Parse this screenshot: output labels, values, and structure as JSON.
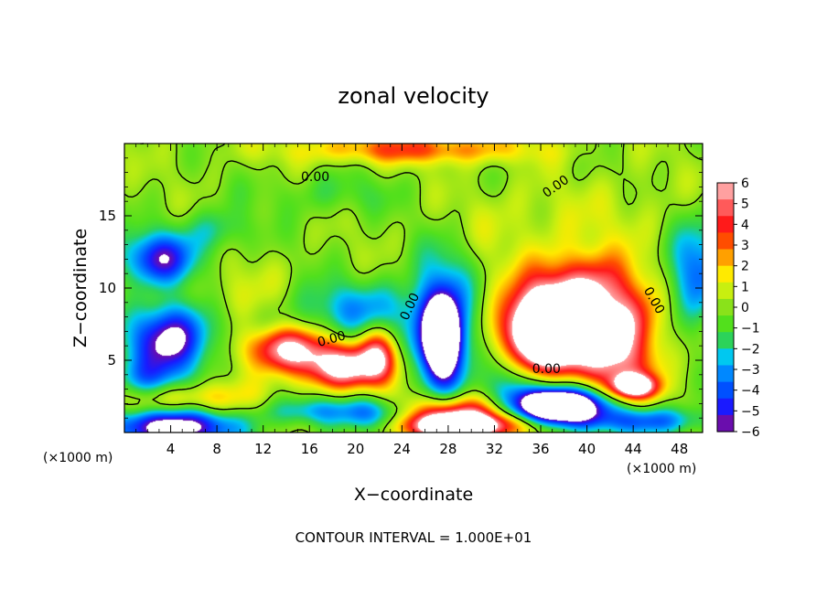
{
  "chart_data": {
    "type": "heatmap",
    "title": "zonal velocity",
    "xlabel": "X−coordinate",
    "ylabel": "Z−coordinate",
    "x_unit": "(×1000 m)",
    "y_unit": "(×1000 m)",
    "xlim": [
      0,
      50
    ],
    "ylim": [
      0,
      20
    ],
    "x_ticks": [
      "4",
      "8",
      "12",
      "16",
      "20",
      "24",
      "28",
      "32",
      "36",
      "40",
      "44",
      "48"
    ],
    "y_ticks": [
      "5",
      "10",
      "15"
    ],
    "colorbar": {
      "ticks": [
        "6",
        "5",
        "4",
        "3",
        "2",
        "1",
        "0",
        "−1",
        "−2",
        "−3",
        "−4",
        "−5",
        "−6"
      ],
      "range": [
        -6,
        6
      ],
      "colors": [
        "#6a0dad",
        "#1a1aff",
        "#0050ff",
        "#0088ff",
        "#00c8f0",
        "#2cd35a",
        "#52e01c",
        "#8ae21a",
        "#c8ef10",
        "#ffea00",
        "#ffa000",
        "#ff4d00",
        "#ff1a1a",
        "#ff5a5a",
        "#ffa0a0"
      ],
      "saturation": "#ffffff"
    },
    "contour_interval_text": "CONTOUR INTERVAL = 1.000E+01",
    "contour_labels": [
      "0.00",
      "0.00",
      "0.00",
      "0.00",
      "0.00",
      "0.00"
    ],
    "blobs": [
      {
        "x": 4,
        "z": 6.5,
        "rx": 3.5,
        "rz": 2.4,
        "v": -6.8
      },
      {
        "x": 4,
        "z": 0.4,
        "rx": 5.5,
        "rz": 1.3,
        "v": -7.5
      },
      {
        "x": 3,
        "z": 12,
        "rx": 3.2,
        "rz": 1.8,
        "v": -5.5
      },
      {
        "x": 8,
        "z": 14,
        "rx": 3.0,
        "rz": 1.5,
        "v": -2
      },
      {
        "x": 14,
        "z": 5.8,
        "rx": 3.5,
        "rz": 1.5,
        "v": 6.2
      },
      {
        "x": 19,
        "z": 4.5,
        "rx": 4,
        "rz": 1.5,
        "v": 6.5
      },
      {
        "x": 22,
        "z": 5.5,
        "rx": 1.6,
        "rz": 1.8,
        "v": 4.5
      },
      {
        "x": 20,
        "z": 8.5,
        "rx": 6,
        "rz": 2.0,
        "v": -3
      },
      {
        "x": 27.5,
        "z": 7,
        "rx": 2.6,
        "rz": 4.8,
        "v": -6
      },
      {
        "x": 27.5,
        "z": 6.5,
        "rx": 1.4,
        "rz": 2.2,
        "v": -9
      },
      {
        "x": 29,
        "z": 1.2,
        "rx": 6,
        "rz": 1.4,
        "v": 6.5
      },
      {
        "x": 29,
        "z": 0.4,
        "rx": 4,
        "rz": 0.8,
        "v": 9
      },
      {
        "x": 37.5,
        "z": 7.5,
        "rx": 4.8,
        "rz": 3.8,
        "v": 7
      },
      {
        "x": 36.5,
        "z": 7,
        "rx": 3.0,
        "rz": 2.3,
        "v": 9.5
      },
      {
        "x": 43,
        "z": 5,
        "rx": 3.5,
        "rz": 3.5,
        "v": 4.5
      },
      {
        "x": 44,
        "z": 3.2,
        "rx": 2.0,
        "rz": 0.8,
        "v": 7
      },
      {
        "x": 41,
        "z": 10,
        "rx": 3.5,
        "rz": 2.5,
        "v": 3.5
      },
      {
        "x": 38,
        "z": 2,
        "rx": 5,
        "rz": 1.6,
        "v": -6.5
      },
      {
        "x": 37,
        "z": 1.8,
        "rx": 3,
        "rz": 1.0,
        "v": -9
      },
      {
        "x": 45,
        "z": 0.8,
        "rx": 5,
        "rz": 1.0,
        "v": -4.5
      },
      {
        "x": 49.5,
        "z": 11,
        "rx": 2.5,
        "rz": 3.5,
        "v": -4
      },
      {
        "x": 25,
        "z": 19.6,
        "rx": 10,
        "rz": 1.0,
        "v": 3.5
      },
      {
        "x": 5,
        "z": 2.3,
        "rx": 6,
        "rz": 1.2,
        "v": 3
      },
      {
        "x": 2,
        "z": 3.5,
        "rx": 3,
        "rz": 1.5,
        "v": -3
      },
      {
        "x": 16,
        "z": 1.5,
        "rx": 4,
        "rz": 1.0,
        "v": -3
      },
      {
        "x": 22,
        "z": 1.3,
        "rx": 3,
        "rz": 1.2,
        "v": -4.5
      },
      {
        "x": 33,
        "z": 3.5,
        "rx": 2,
        "rz": 2.5,
        "v": -3
      },
      {
        "x": 44,
        "z": 8,
        "rx": 2.0,
        "rz": 2.0,
        "v": 2
      },
      {
        "x": 10,
        "z": 9.5,
        "rx": 4,
        "rz": 2,
        "v": 1.2
      },
      {
        "x": 35,
        "z": 15,
        "rx": 8,
        "rz": 2.5,
        "v": 0.8
      },
      {
        "x": 45,
        "z": 15.5,
        "rx": 4,
        "rz": 3.0,
        "v": 0.5
      },
      {
        "x": 18,
        "z": 16.5,
        "rx": 6,
        "rz": 1.5,
        "v": -1.2
      }
    ]
  }
}
